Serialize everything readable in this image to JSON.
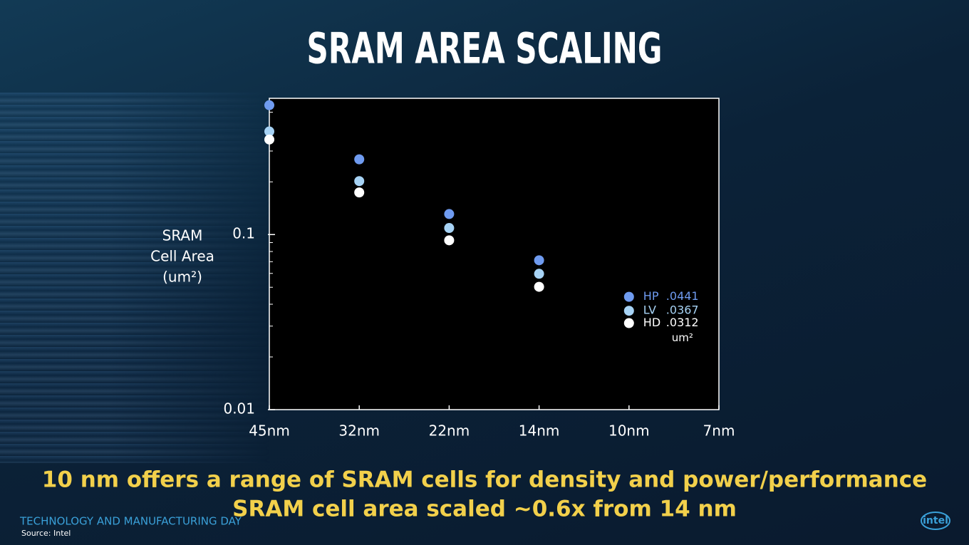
{
  "chart_data": {
    "type": "scatter",
    "title": "SRAM AREA SCALING",
    "ylabel": [
      "SRAM",
      "Cell Area",
      "(um²)"
    ],
    "categories": [
      "45nm",
      "32nm",
      "22nm",
      "14nm",
      "10nm",
      "7nm"
    ],
    "log_y": true,
    "ylim": [
      0.01,
      0.6
    ],
    "yticks": [
      0.01,
      0.1
    ],
    "yminorticks": [
      0.02,
      0.03,
      0.04,
      0.05,
      0.06,
      0.07,
      0.08,
      0.09,
      0.2,
      0.3,
      0.4,
      0.5
    ],
    "series": [
      {
        "name": "HP",
        "color": "#6f9bf0",
        "values": [
          0.548,
          0.269,
          0.131,
          0.0713,
          0.0441,
          null
        ],
        "value_labels": [
          null,
          null,
          null,
          null,
          ".0441",
          null
        ]
      },
      {
        "name": "LV",
        "color": "#a7d3f5",
        "values": [
          0.388,
          0.202,
          0.109,
          0.0597,
          0.0367,
          null
        ],
        "value_labels": [
          null,
          null,
          null,
          null,
          ".0367",
          null
        ]
      },
      {
        "name": "HD",
        "color": "#ffffff",
        "values": [
          0.349,
          0.174,
          0.0927,
          0.0503,
          0.0312,
          null
        ],
        "value_labels": [
          null,
          null,
          null,
          null,
          ".0312",
          null
        ]
      }
    ],
    "value_unit": "um²",
    "notes": [
      "10 nm offers a range of SRAM cells for density and power/performance",
      "SRAM cell area scaled ~0.6x from 14 nm"
    ]
  },
  "footer": {
    "event": "TECHNOLOGY AND MANUFACTURING DAY",
    "source": "Source: Intel",
    "logo": "intel"
  }
}
